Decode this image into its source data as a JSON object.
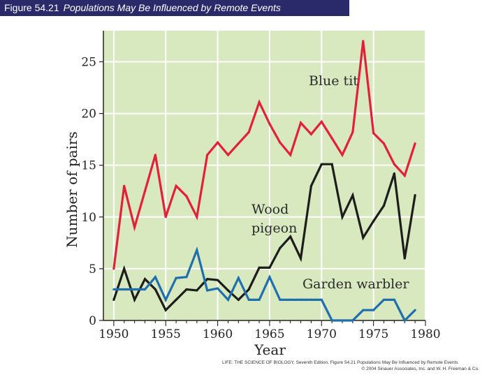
{
  "figure": {
    "number": "Figure 54.21",
    "caption": "Populations May Be Influenced by Remote Events"
  },
  "credit": {
    "line1": "LIFE: THE SCIENCE OF BIOLOGY, Seventh Edition, Figure 54.21 Populations May Be Influenced by Remote Events",
    "line2": "© 2004 Sinauer Associates, Inc. and W. H. Freeman & Co."
  },
  "colors": {
    "plot_background": "#d8e8bf",
    "blue_tit": "#e2203a",
    "wood_pigeon": "#1d1d1b",
    "garden_warbler": "#1f6fae"
  },
  "chart_data": {
    "type": "line",
    "title": "",
    "xlabel": "Year",
    "ylabel": "Number of pairs",
    "xlim": [
      1949,
      1980
    ],
    "ylim": [
      0,
      28
    ],
    "xticks": [
      "1950",
      "1955",
      "1960",
      "1965",
      "1970",
      "1975",
      "1980"
    ],
    "xtick_values": [
      1950,
      1955,
      1960,
      1965,
      1970,
      1975,
      1980
    ],
    "yticks": [
      "0",
      "5",
      "10",
      "15",
      "20",
      "25"
    ],
    "ytick_values": [
      0,
      5,
      10,
      15,
      20,
      25
    ],
    "grid": true,
    "series": [
      {
        "name": "Blue tit",
        "key": "blue_tit",
        "x": [
          1950,
          1951,
          1952,
          1953,
          1954,
          1955,
          1956,
          1957,
          1958,
          1959,
          1960,
          1961,
          1962,
          1963,
          1964,
          1965,
          1966,
          1967,
          1968,
          1969,
          1970,
          1971,
          1972,
          1973,
          1974,
          1975,
          1976,
          1977,
          1978,
          1979
        ],
        "values": [
          5,
          13,
          9,
          12.5,
          16,
          10,
          13,
          12,
          10,
          16,
          17.2,
          16,
          17.1,
          18.2,
          21.1,
          19,
          17.2,
          16,
          19.1,
          18,
          19.2,
          17.6,
          16,
          18.2,
          27,
          18.1,
          17.1,
          15.1,
          14,
          17.1
        ]
      },
      {
        "name": "Wood pigeon",
        "key": "wood_pigeon",
        "x": [
          1950,
          1951,
          1952,
          1953,
          1954,
          1955,
          1956,
          1957,
          1958,
          1959,
          1960,
          1961,
          1962,
          1963,
          1964,
          1965,
          1966,
          1967,
          1968,
          1969,
          1970,
          1971,
          1972,
          1973,
          1974,
          1975,
          1976,
          1977,
          1978,
          1979
        ],
        "values": [
          2,
          5,
          2,
          4,
          3,
          1,
          2,
          3,
          2.9,
          4,
          3.9,
          2.9,
          2,
          3,
          5.1,
          5.1,
          7,
          8.1,
          6,
          13,
          15.1,
          15.1,
          10,
          12.1,
          8,
          9.6,
          11.1,
          14.2,
          6,
          12.1
        ]
      },
      {
        "name": "Garden warbler",
        "key": "garden_warbler",
        "x": [
          1950,
          1951,
          1952,
          1953,
          1954,
          1955,
          1956,
          1957,
          1958,
          1959,
          1960,
          1961,
          1962,
          1963,
          1964,
          1965,
          1966,
          1967,
          1968,
          1969,
          1970,
          1971,
          1972,
          1973,
          1974,
          1975,
          1976,
          1977,
          1978,
          1979
        ],
        "values": [
          3,
          3,
          3,
          3,
          4.2,
          2,
          4.1,
          4.2,
          6.8,
          2.9,
          3.1,
          2,
          4.1,
          2,
          2,
          4.2,
          2,
          2,
          2,
          2,
          2,
          0,
          0,
          0,
          1,
          1,
          2,
          2,
          0,
          1
        ]
      }
    ],
    "annotations": [
      {
        "series": "blue_tit",
        "lines": [
          "Blue tit"
        ]
      },
      {
        "series": "wood_pigeon",
        "lines": [
          "Wood",
          "pigeon"
        ]
      },
      {
        "series": "garden_warbler",
        "lines": [
          "Garden warbler"
        ]
      }
    ]
  }
}
